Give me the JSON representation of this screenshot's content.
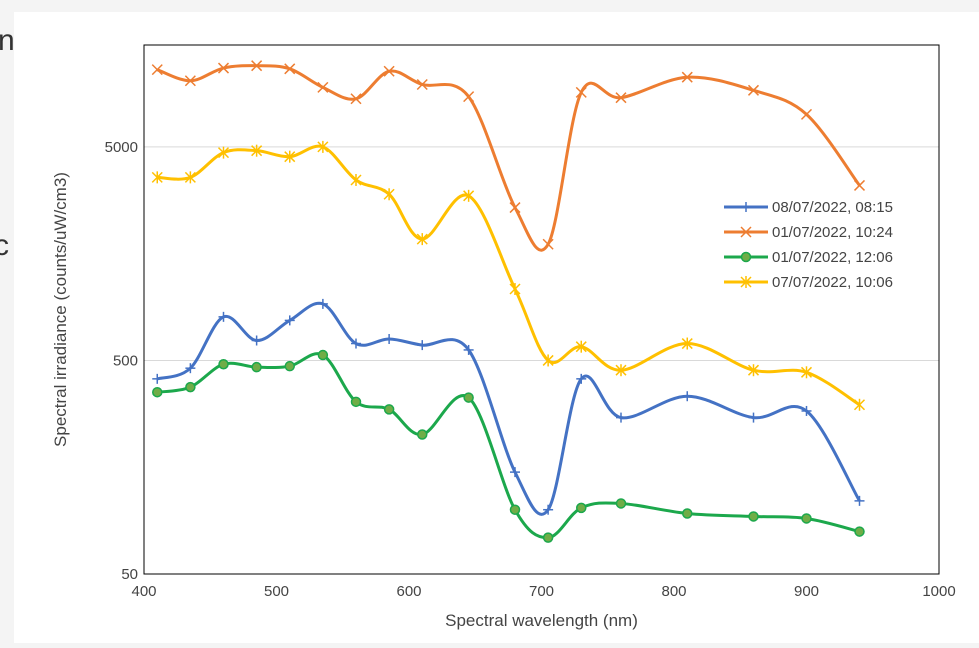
{
  "slide": {
    "partial_text_1": "n",
    "partial_text_2": "c"
  },
  "chart_data": {
    "type": "line",
    "title": "",
    "xlabel": "Spectral wavelength (nm)",
    "ylabel": "Spectral irradiance (counts/uW/cm3)",
    "xlim": [
      400,
      1000
    ],
    "ylim": [
      50,
      15000
    ],
    "y_scale": "log",
    "grid": "horizontal",
    "legend_position": "right",
    "x_ticks": [
      400,
      500,
      600,
      700,
      800,
      900,
      1000
    ],
    "y_ticks": [
      50,
      500,
      5000
    ],
    "x_tick_labels": [
      "400",
      "500",
      "600",
      "700",
      "800",
      "900",
      "1000"
    ],
    "y_tick_labels": [
      "50",
      "500",
      "5000"
    ],
    "x": [
      410,
      435,
      460,
      485,
      510,
      535,
      560,
      585,
      610,
      645,
      680,
      705,
      730,
      760,
      810,
      860,
      900,
      940
    ],
    "series": [
      {
        "name": "08/07/2022, 08:15",
        "color": "#4472c4",
        "marker": "plus",
        "values": [
          410,
          460,
          800,
          620,
          770,
          920,
          600,
          630,
          590,
          560,
          150,
          100,
          410,
          270,
          340,
          270,
          290,
          110
        ]
      },
      {
        "name": "01/07/2022, 10:24",
        "color": "#ed7d31",
        "marker": "x",
        "values": [
          11500,
          10200,
          11700,
          12000,
          11600,
          9500,
          8400,
          11300,
          9800,
          8600,
          2600,
          1750,
          9000,
          8500,
          10600,
          9200,
          7100,
          3300
        ]
      },
      {
        "name": "01/07/2022, 12:06",
        "color": "#1ca84c",
        "marker": "circle",
        "values": [
          355,
          375,
          480,
          465,
          470,
          530,
          320,
          295,
          225,
          335,
          100,
          74,
          102,
          107,
          96,
          93,
          91,
          79
        ]
      },
      {
        "name": "07/07/2022, 10:06",
        "color": "#ffc000",
        "marker": "asterisk",
        "values": [
          3600,
          3600,
          4700,
          4800,
          4500,
          5000,
          3500,
          3000,
          1850,
          2950,
          1080,
          500,
          580,
          450,
          600,
          450,
          440,
          310
        ]
      }
    ]
  }
}
